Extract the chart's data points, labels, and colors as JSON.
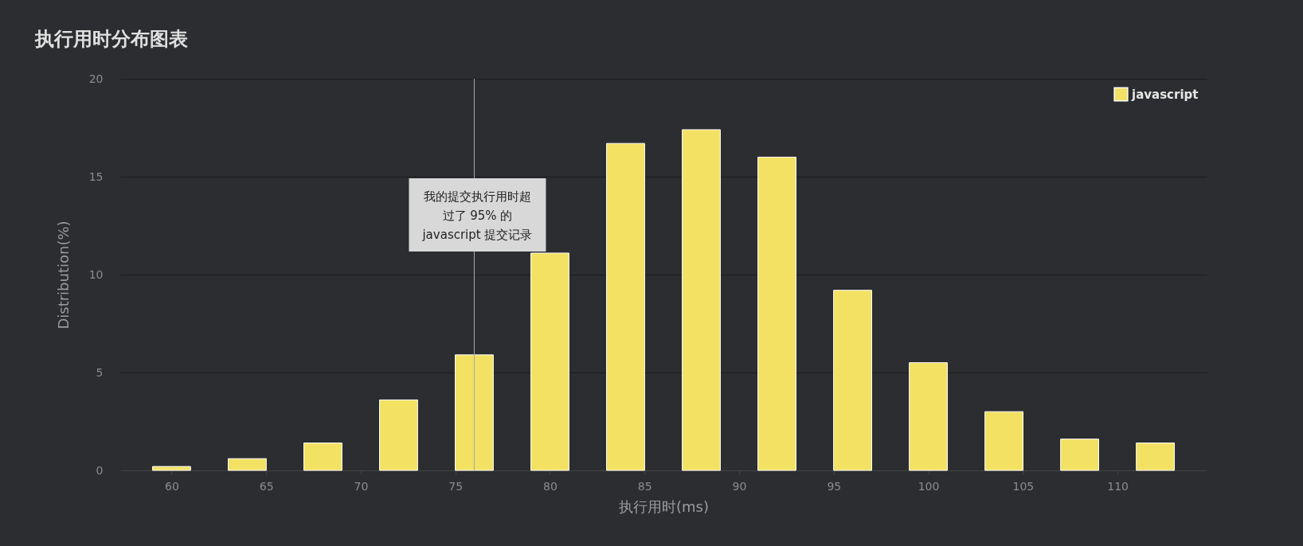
{
  "chart_data": {
    "type": "bar",
    "title": "执行用时分布图表",
    "xlabel": "执行用时(ms)",
    "ylabel": "Distribution(%)",
    "x": [
      60,
      64,
      68,
      72,
      76,
      80,
      84,
      88,
      92,
      96,
      100,
      104,
      108,
      112
    ],
    "series": [
      {
        "name": "javascript",
        "color": "#f2e163",
        "values": [
          0.2,
          0.6,
          1.4,
          3.6,
          5.9,
          11.1,
          16.7,
          17.4,
          16.0,
          9.2,
          5.5,
          3.0,
          1.6,
          1.4
        ]
      }
    ],
    "xlim": [
      57.5,
      114.5
    ],
    "xticks": [
      60,
      65,
      70,
      75,
      80,
      85,
      90,
      95,
      100,
      105,
      110
    ],
    "ylim": [
      0,
      20
    ],
    "yticks": [
      0,
      5,
      10,
      15,
      20
    ],
    "grid": "y",
    "legend": "top right",
    "ref_lines": [
      {
        "axis": "x",
        "value": 76,
        "label": "我的提交执行用时超过了 95% 的 javascript 提交记录",
        "color": "#aaaaaa"
      }
    ]
  }
}
